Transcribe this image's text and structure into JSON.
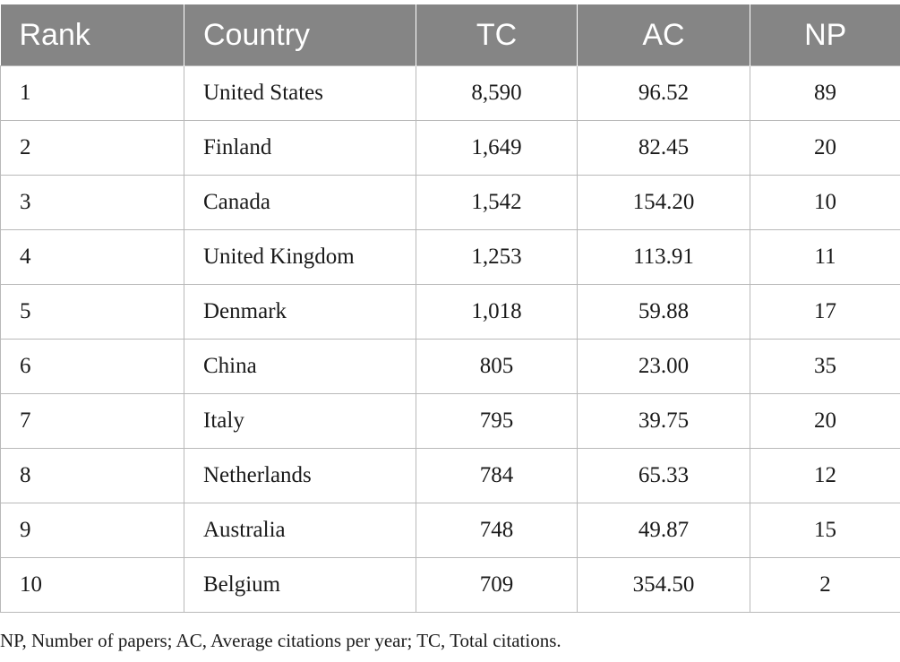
{
  "table": {
    "headers": [
      "Rank",
      "Country",
      "TC",
      "AC",
      "NP"
    ],
    "rows": [
      [
        "1",
        "United States",
        "8,590",
        "96.52",
        "89"
      ],
      [
        "2",
        "Finland",
        "1,649",
        "82.45",
        "20"
      ],
      [
        "3",
        "Canada",
        "1,542",
        "154.20",
        "10"
      ],
      [
        "4",
        "United Kingdom",
        "1,253",
        "113.91",
        "11"
      ],
      [
        "5",
        "Denmark",
        "1,018",
        "59.88",
        "17"
      ],
      [
        "6",
        "China",
        "805",
        "23.00",
        "35"
      ],
      [
        "7",
        "Italy",
        "795",
        "39.75",
        "20"
      ],
      [
        "8",
        "Netherlands",
        "784",
        "65.33",
        "12"
      ],
      [
        "9",
        "Australia",
        "748",
        "49.87",
        "15"
      ],
      [
        "10",
        "Belgium",
        "709",
        "354.50",
        "2"
      ]
    ]
  },
  "footnote": "NP, Number of papers; AC, Average citations per year; TC, Total citations.",
  "colors": {
    "header_bg": "#858585",
    "header_text": "#ffffff",
    "grid": "#b9b9b9"
  }
}
